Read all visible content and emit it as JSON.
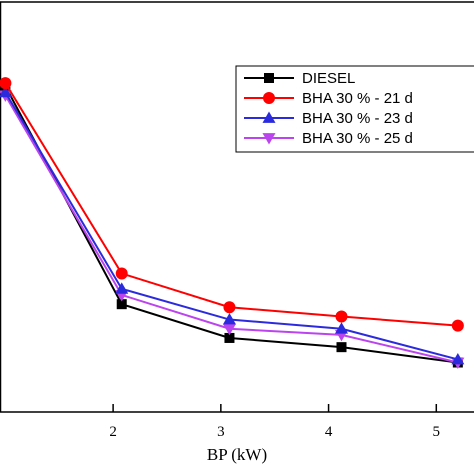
{
  "chart_data": {
    "type": "line",
    "title": "",
    "xlabel": "BP (kW)",
    "ylabel": "",
    "x": [
      1.0,
      2.08,
      3.08,
      4.12,
      5.2
    ],
    "xticks": [
      "2",
      "3",
      "4",
      "5"
    ],
    "xtick_values": [
      2,
      3,
      4,
      5
    ],
    "xlim": [
      0.95,
      5.35
    ],
    "ylim": [
      0,
      100
    ],
    "grid": false,
    "legend_position": "top-right",
    "series": [
      {
        "name": "DIESEL",
        "color": "#000000",
        "marker": "square",
        "values": [
          97,
          26,
          15,
          12,
          7
        ]
      },
      {
        "name": "BHA 30 % - 21 d",
        "color": "#ff0000",
        "marker": "circle",
        "values": [
          98,
          36,
          25,
          22,
          19
        ]
      },
      {
        "name": "BHA 30 % - 23 d",
        "color": "#2b2bdd",
        "marker": "triangle-up",
        "values": [
          95,
          31,
          21,
          18,
          8
        ]
      },
      {
        "name": "BHA 30 % - 25 d",
        "color": "#bb44ee",
        "marker": "triangle-down",
        "values": [
          94,
          29,
          18,
          16,
          7
        ]
      }
    ]
  }
}
